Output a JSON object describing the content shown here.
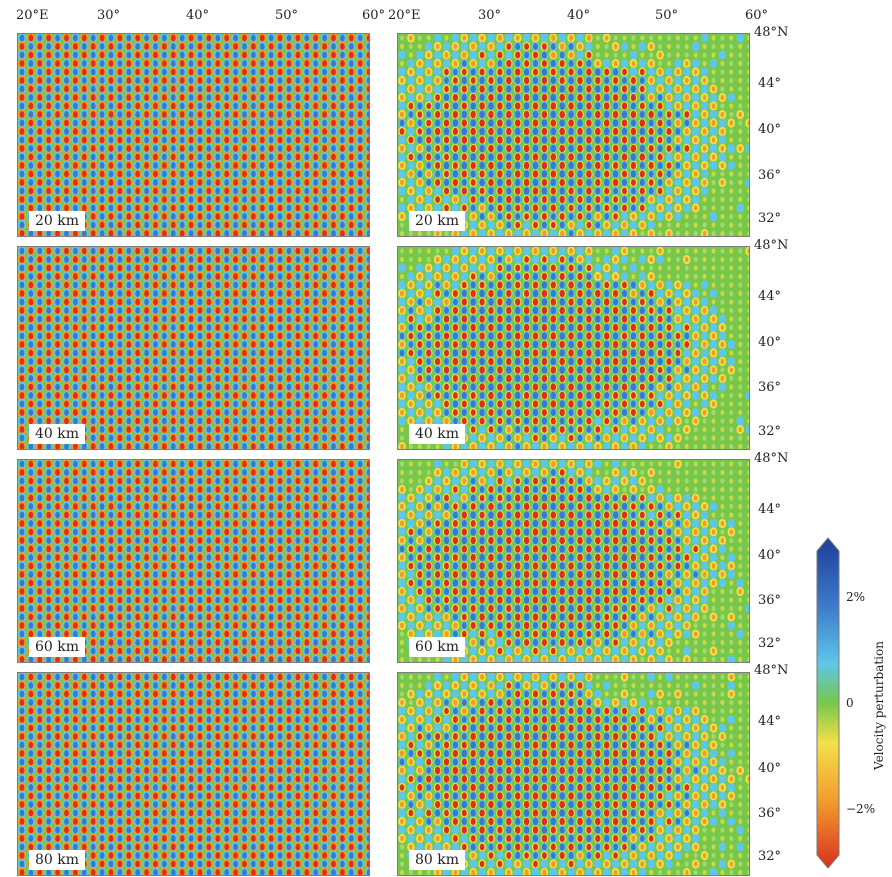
{
  "top_lon_labels": [
    "20°E",
    "30°",
    "40°",
    "50°",
    "60°",
    "20°E",
    "30°",
    "40°",
    "50°",
    "60°"
  ],
  "rows": [
    {
      "depth": "20 km",
      "lat_labels": [
        "48°N",
        "44°",
        "40°",
        "36°",
        "32°"
      ]
    },
    {
      "depth": "40 km",
      "lat_labels": [
        "48°N",
        "44°",
        "40°",
        "36°",
        "32°"
      ]
    },
    {
      "depth": "60 km",
      "lat_labels": [
        "48°N",
        "44°",
        "40°",
        "36°",
        "32°"
      ]
    },
    {
      "depth": "80 km",
      "lat_labels": [
        "48°N",
        "44°",
        "40°",
        "36°",
        "32°"
      ]
    }
  ],
  "colorbar": {
    "title": "Velocity perturbation",
    "ticks": [
      "2%",
      "0",
      "−2%"
    ],
    "colors": [
      "#1f3e9a",
      "#3b78c9",
      "#5fc6ea",
      "#77c84a",
      "#f4e04a",
      "#f29a2e",
      "#d9301f"
    ]
  }
}
